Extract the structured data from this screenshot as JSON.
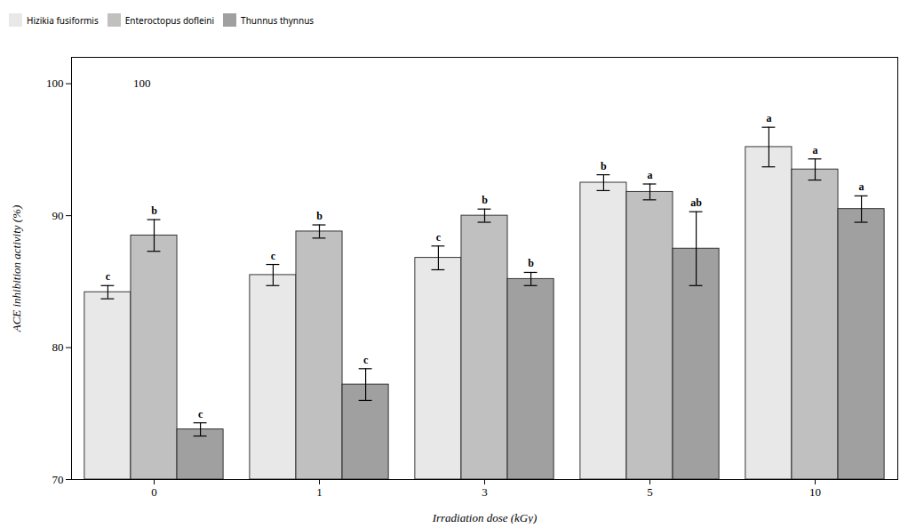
{
  "chart_data": {
    "type": "bar",
    "categories": [
      "0",
      "1",
      "3",
      "5",
      "10"
    ],
    "series": [
      {
        "name": "Hizikia fusiformis",
        "color": "#e8e8e8",
        "values": [
          84.2,
          85.5,
          86.8,
          92.5,
          95.2
        ],
        "errors": [
          0.5,
          0.8,
          0.9,
          0.6,
          1.5
        ],
        "labels": [
          "c",
          "c",
          "c",
          "b",
          "a"
        ]
      },
      {
        "name": "Enteroctopus dofleini",
        "color": "#c0c0c0",
        "values": [
          88.5,
          88.8,
          90.0,
          91.8,
          93.5
        ],
        "errors": [
          1.2,
          0.5,
          0.5,
          0.6,
          0.8
        ],
        "labels": [
          "b",
          "b",
          "b",
          "a",
          "a"
        ]
      },
      {
        "name": "Thunnus thynnus",
        "color": "#a0a0a0",
        "values": [
          73.8,
          77.2,
          85.2,
          87.5,
          90.5
        ],
        "errors": [
          0.5,
          1.2,
          0.5,
          2.8,
          1.0
        ],
        "labels": [
          "c",
          "c",
          "b",
          "ab",
          "a"
        ]
      }
    ],
    "xlabel": "Irradiation dose (kGy)",
    "ylabel": "ACE inhibition activity (%)",
    "ylim": [
      70,
      102
    ],
    "yticks": [
      70,
      80,
      90,
      100
    ],
    "annotations": [
      {
        "text": "100",
        "x": "0",
        "y": 100
      }
    ],
    "grid": false,
    "legend": "upper left"
  }
}
